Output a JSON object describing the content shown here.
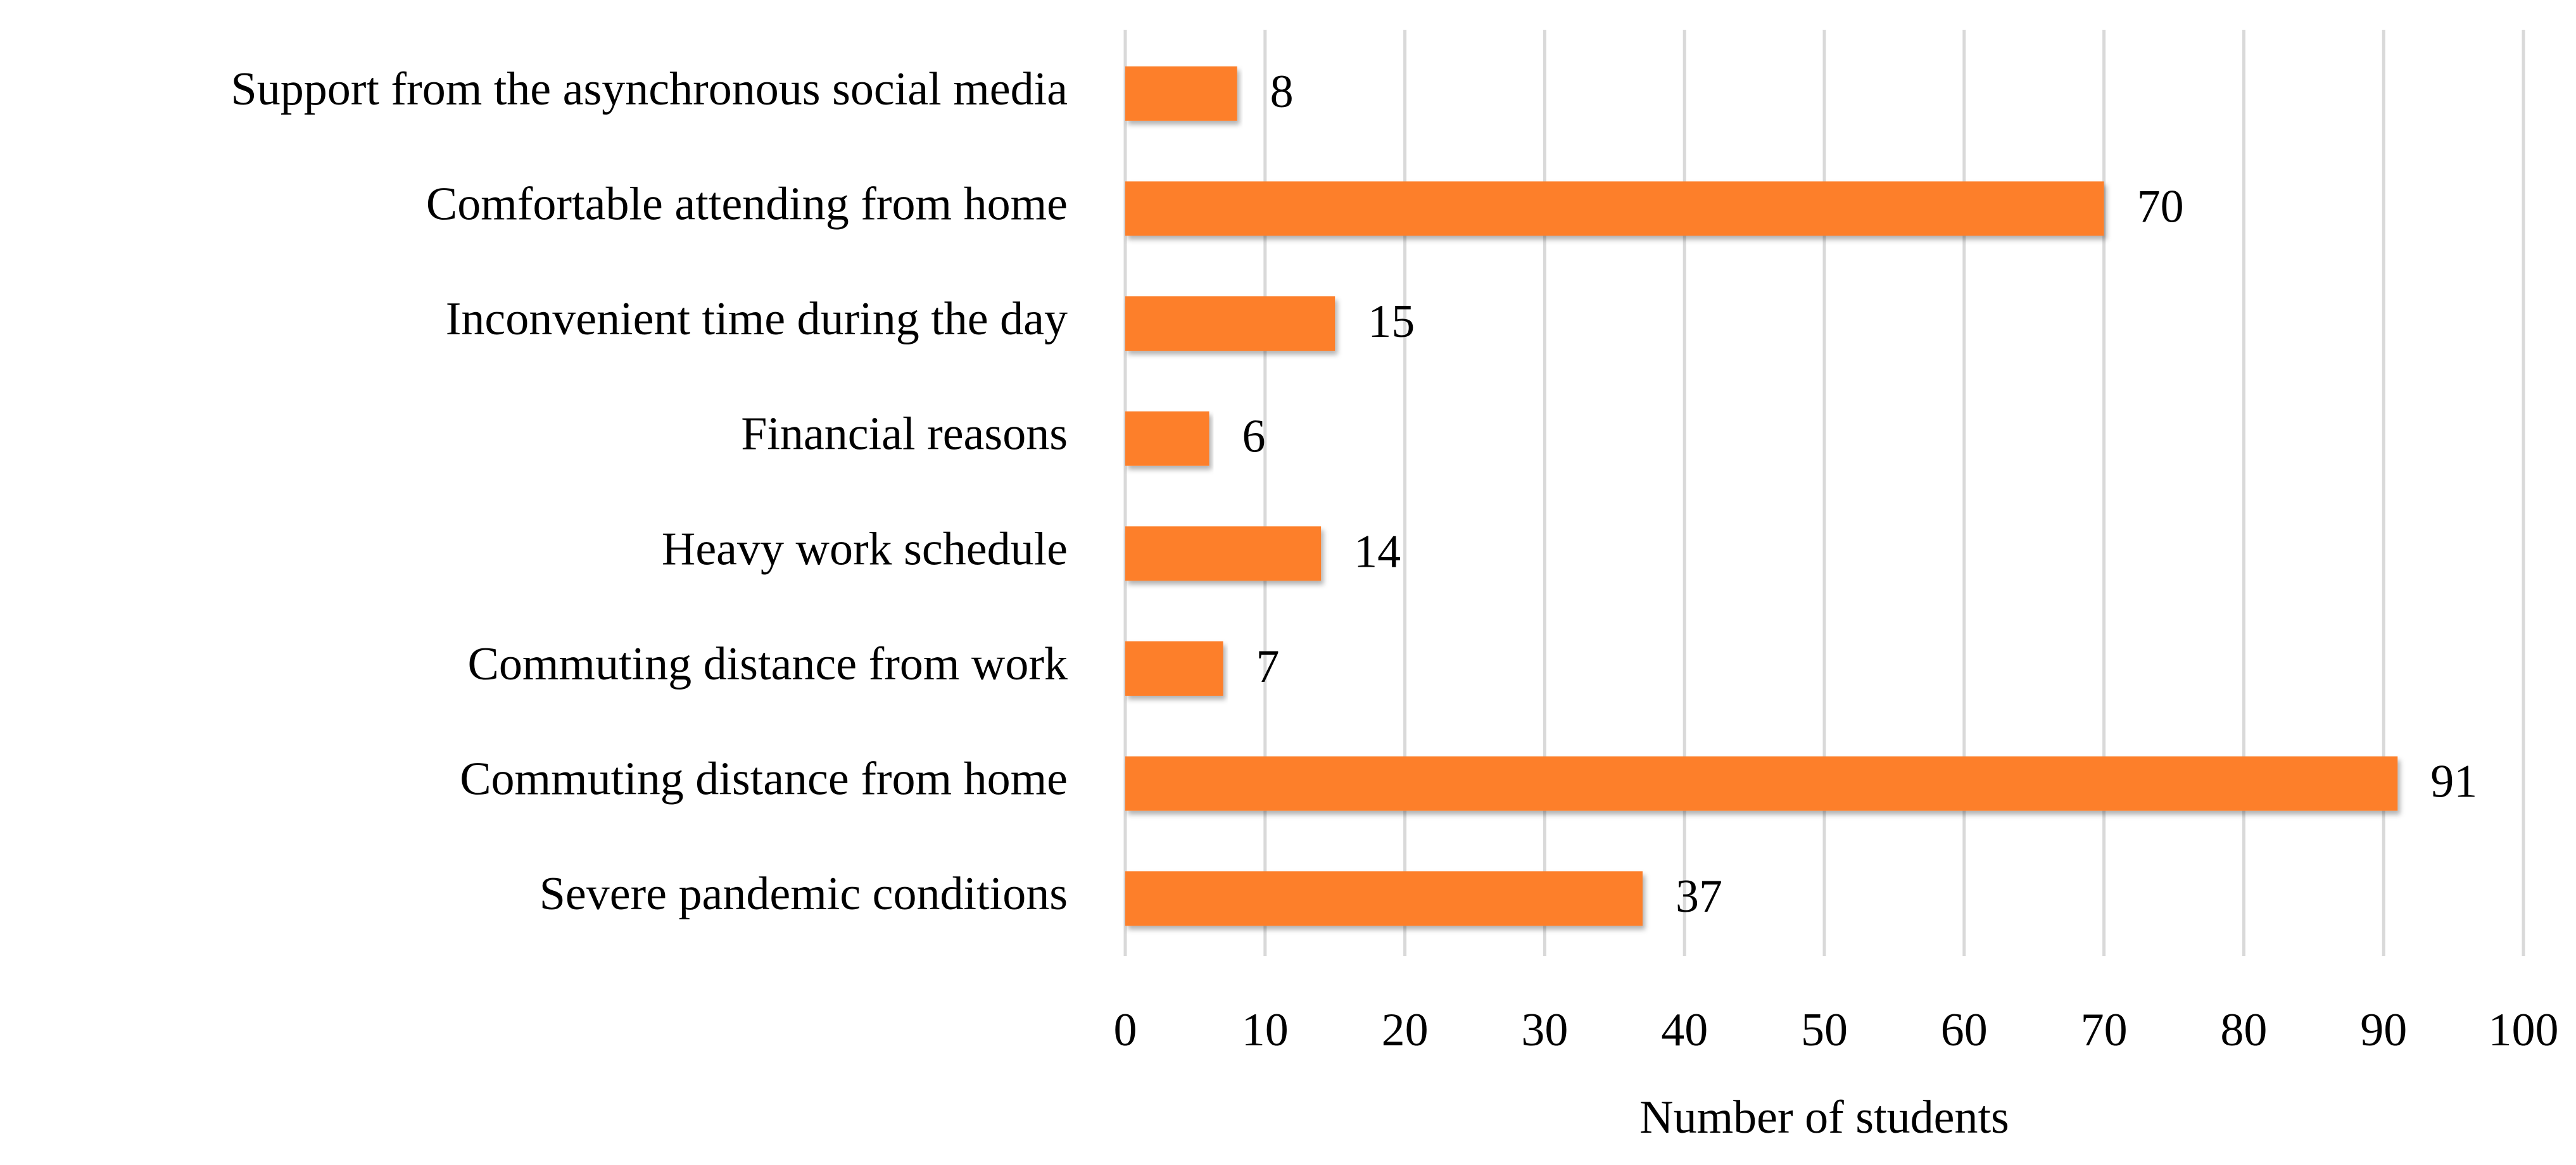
{
  "chart_data": {
    "type": "bar",
    "orientation": "horizontal",
    "categories": [
      "Support from the asynchronous social media",
      "Comfortable attending from home",
      "Inconvenient time during the day",
      "Financial reasons",
      "Heavy work schedule",
      "Commuting distance from work",
      "Commuting distance from home",
      "Severe pandemic conditions"
    ],
    "values": [
      8,
      70,
      15,
      6,
      14,
      7,
      91,
      37
    ],
    "color": "#fd7f2a",
    "xlabel": "Number of students",
    "xlim": [
      0,
      100
    ],
    "xticks": [
      0,
      10,
      20,
      30,
      40,
      50,
      60,
      70,
      80,
      90,
      100
    ],
    "grid": true,
    "data_labels": true
  }
}
